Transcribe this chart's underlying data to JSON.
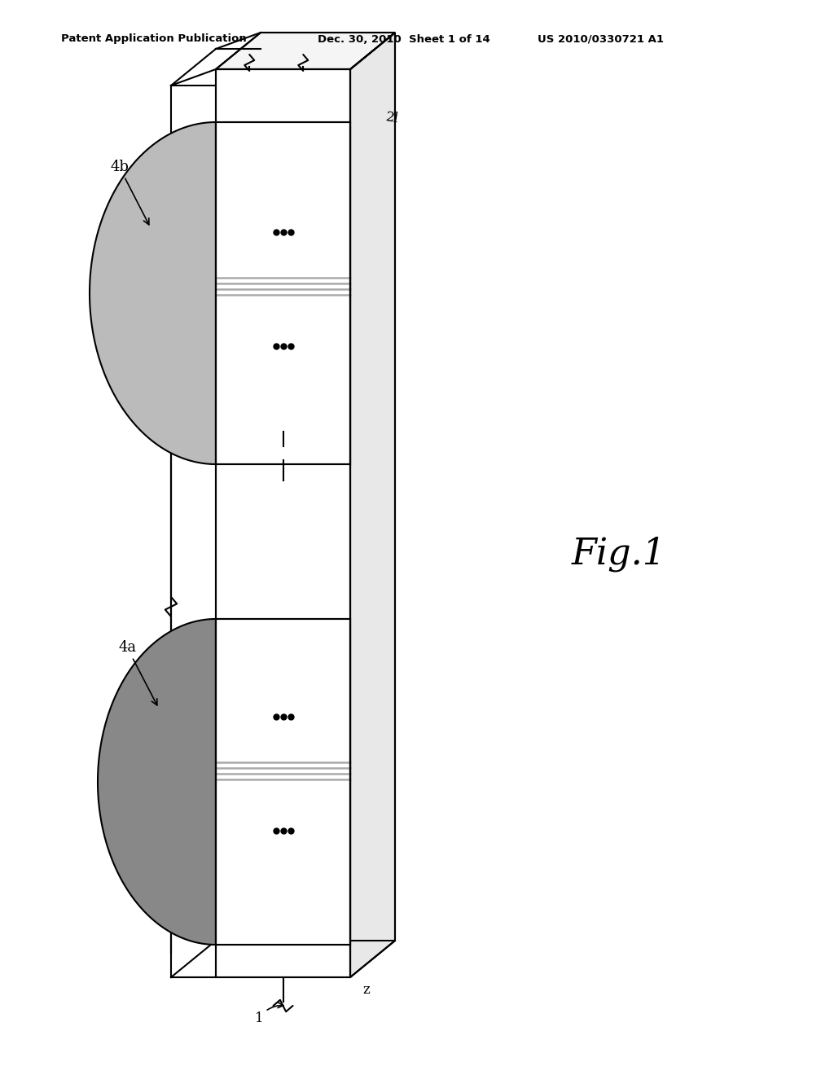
{
  "bg_color": "#ffffff",
  "line_color": "#000000",
  "wafer_a_fill": "#888888",
  "wafer_b_fill": "#bbbbbb",
  "rect_fill": "#ffffff",
  "stripe_color": "#aaaaaa",
  "right_face_fill": "#e8e8e8",
  "top_face_fill": "#f5f5f5",
  "header_left": "Patent Application Publication",
  "header_mid": "Dec. 30, 2010  Sheet 1 of 14",
  "header_right": "US 2010/0330721 A1",
  "label_4a": "4a",
  "label_4b": "4b",
  "label_2l": "2l",
  "label_z": "z",
  "label_1": "1",
  "fig_label": "Fig.1"
}
